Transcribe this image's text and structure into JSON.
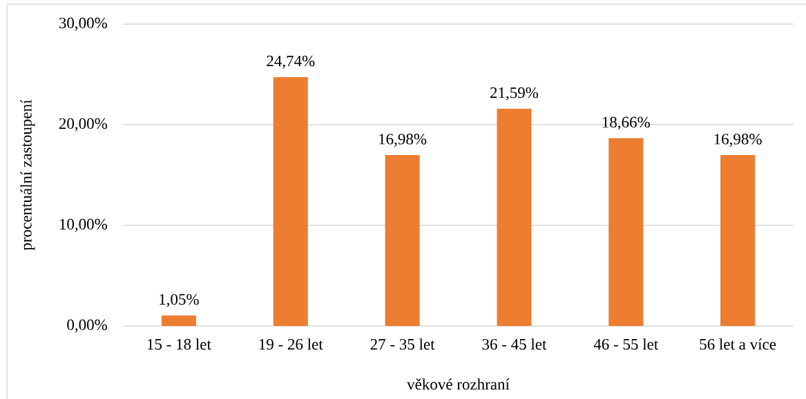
{
  "chart_data": {
    "type": "bar",
    "xlabel": "věkové rozhraní",
    "ylabel": "procentuální zastoupení",
    "categories": [
      "15 - 18 let",
      "19 - 26 let",
      "27 - 35 let",
      "36 - 45 let",
      "46 - 55 let",
      "56 let a více"
    ],
    "values": [
      1.05,
      24.74,
      16.98,
      21.59,
      18.66,
      16.98
    ],
    "color": "#ed7d31",
    "value_labels": [
      "1,05%",
      "24,74%",
      "16,98%",
      "21,59%",
      "18,66%",
      "16,98%"
    ],
    "ylim": [
      0,
      30
    ],
    "yticks": [
      {
        "value": 0,
        "label": "0,00%"
      },
      {
        "value": 10,
        "label": "10,00%"
      },
      {
        "value": 20,
        "label": "20,00%"
      },
      {
        "value": 30,
        "label": "30,00%"
      }
    ],
    "grid": "y"
  }
}
